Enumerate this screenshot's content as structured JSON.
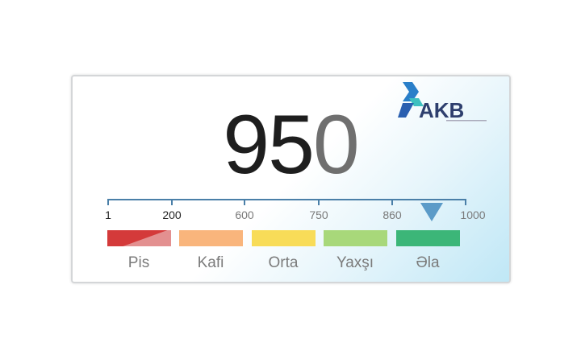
{
  "score": {
    "value_main": "95",
    "value_last": "0",
    "value": 950
  },
  "logo": {
    "text": "AKB"
  },
  "scale": {
    "ticks": [
      "1",
      "200",
      "600",
      "750",
      "860",
      "1000"
    ],
    "marker_value": 950,
    "marker_color": "#5b9bc8"
  },
  "categories": [
    {
      "label": "Pis",
      "color": "#d43a3a"
    },
    {
      "label": "Kafi",
      "color": "#f9b57c"
    },
    {
      "label": "Orta",
      "color": "#f8dc58"
    },
    {
      "label": "Yaxşı",
      "color": "#a8d87a"
    },
    {
      "label": "Əla",
      "color": "#3cb678"
    }
  ]
}
